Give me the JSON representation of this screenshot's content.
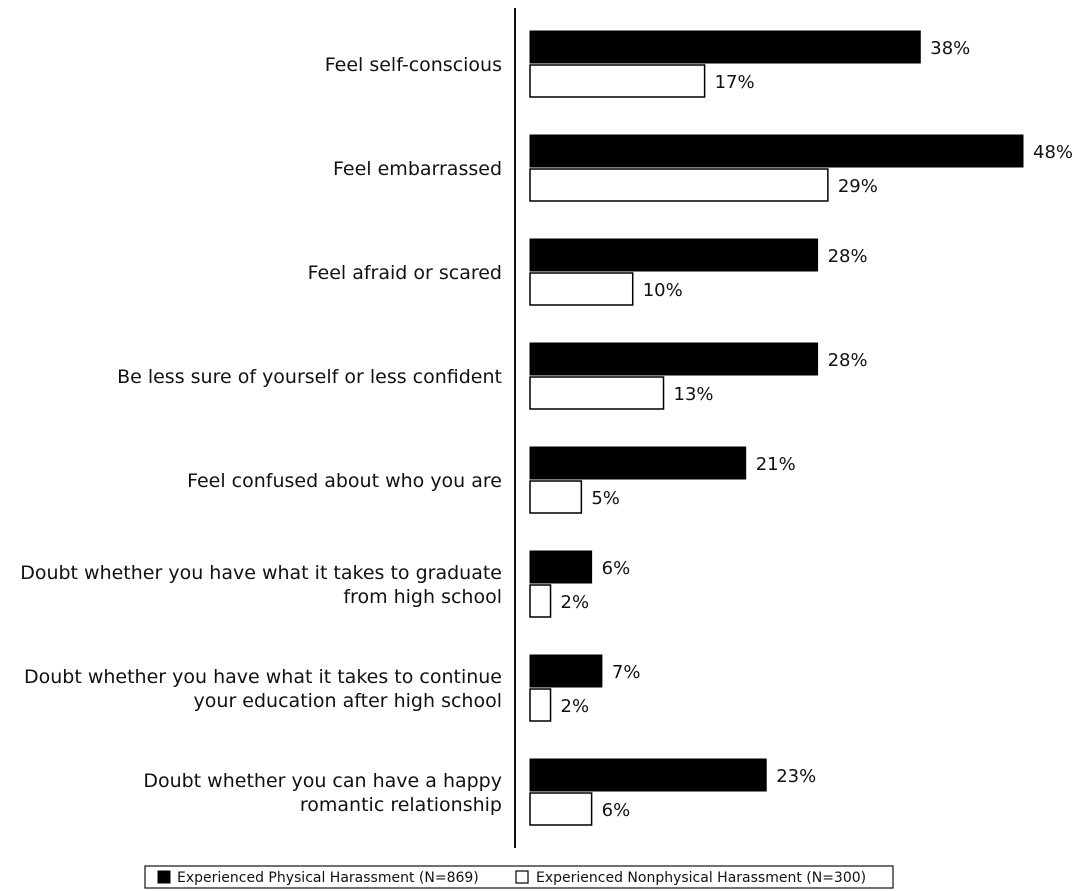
{
  "chart_data": {
    "type": "bar",
    "orientation": "horizontal",
    "categories": [
      [
        "Feel self-conscious"
      ],
      [
        "Feel embarrassed"
      ],
      [
        "Feel afraid or scared"
      ],
      [
        "Be less sure of yourself or less confident"
      ],
      [
        "Feel confused about who you are"
      ],
      [
        "Doubt whether you have what it takes to graduate",
        "from high school"
      ],
      [
        "Doubt whether you have what it takes to continue",
        "your education after high school"
      ],
      [
        "Doubt whether you can have a happy",
        "romantic relationship"
      ]
    ],
    "series": [
      {
        "name": "Experienced Physical Harassment (N=869)",
        "values": [
          38,
          48,
          28,
          28,
          21,
          6,
          7,
          23
        ],
        "value_labels": [
          "38%",
          "48%",
          "28%",
          "28%",
          "21%",
          "6%",
          "7%",
          "23%"
        ],
        "fill": "#000000"
      },
      {
        "name": "Experienced Nonphysical Harassment (N=300)",
        "values": [
          17,
          29,
          10,
          13,
          5,
          2,
          2,
          6
        ],
        "value_labels": [
          "17%",
          "29%",
          "10%",
          "13%",
          "5%",
          "2%",
          "2%",
          "6%"
        ],
        "fill": "#ffffff"
      }
    ],
    "xlim": [
      0,
      48
    ],
    "grid": false,
    "legend_position": "bottom"
  }
}
